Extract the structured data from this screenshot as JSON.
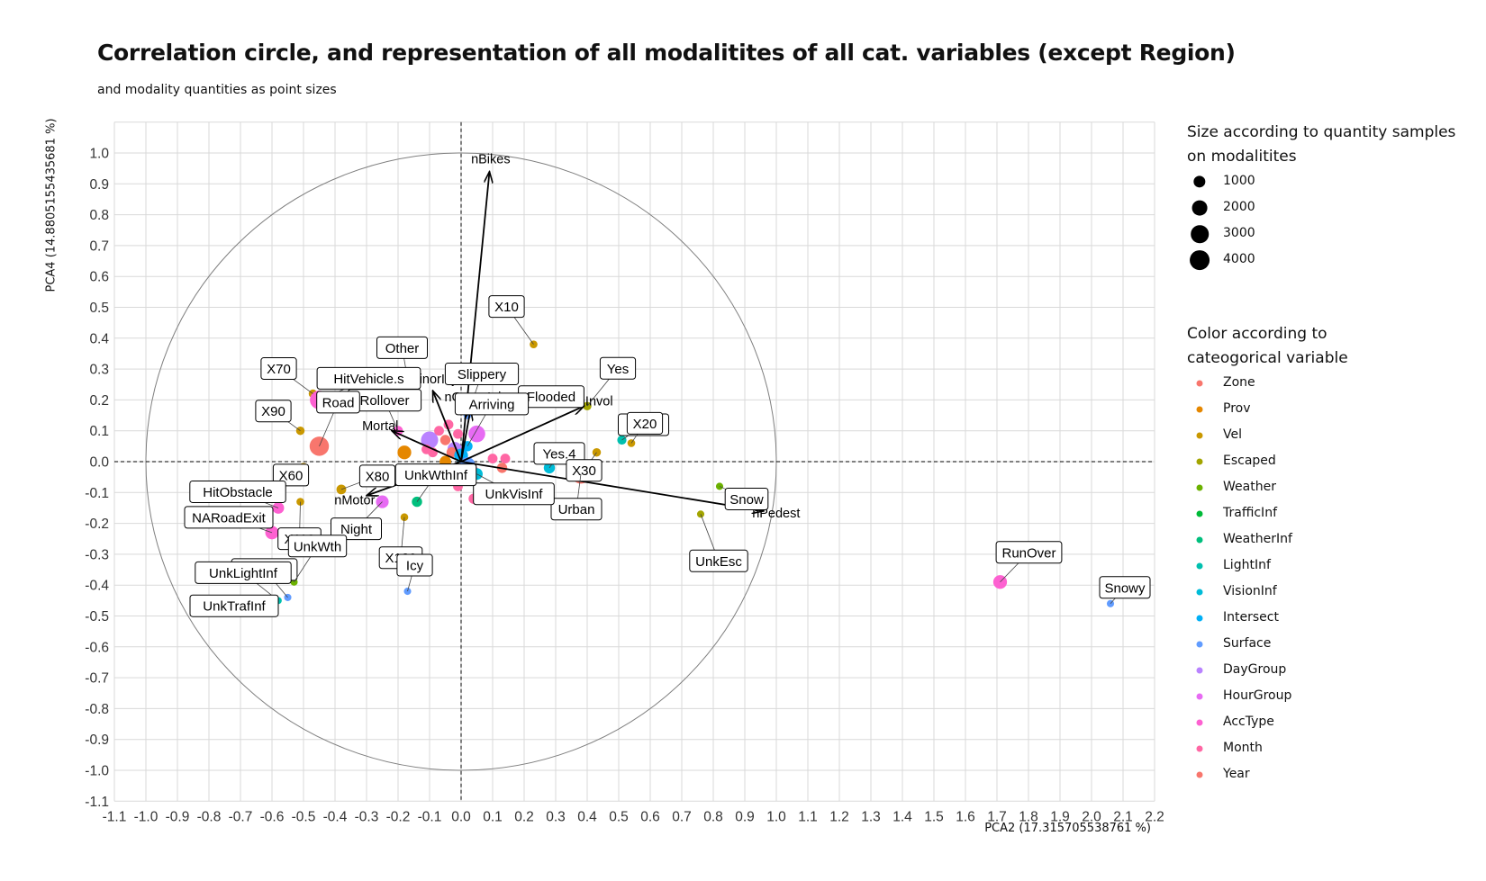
{
  "chart_data": {
    "type": "scatter",
    "title": "Correlation circle, and representation of all modalitites of all cat. variables (except Region)",
    "subtitle": "and modality quantities as point sizes",
    "xlabel": "PCA2 (17.315705538761 %)",
    "ylabel": "PCA4 (14.8805155435681 %)",
    "xlim": [
      -1.1,
      2.2
    ],
    "ylim": [
      -1.1,
      1.0
    ],
    "x_ticks": [
      "-1.1",
      "-1.0",
      "-0.9",
      "-0.8",
      "-0.7",
      "-0.6",
      "-0.5",
      "-0.4",
      "-0.3",
      "-0.2",
      "-0.1",
      "0.0",
      "0.1",
      "0.2",
      "0.3",
      "0.4",
      "0.5",
      "0.6",
      "0.7",
      "0.8",
      "0.9",
      "1.0",
      "1.1",
      "1.2",
      "1.3",
      "1.4",
      "1.5",
      "1.6",
      "1.7",
      "1.8",
      "1.9",
      "2.0",
      "2.1",
      "2.2"
    ],
    "y_ticks": [
      "-1.1",
      "-1.0",
      "-0.9",
      "-0.8",
      "-0.7",
      "-0.6",
      "-0.5",
      "-0.4",
      "-0.3",
      "-0.2",
      "-0.1",
      "0.0",
      "0.1",
      "0.2",
      "0.3",
      "0.4",
      "0.5",
      "0.6",
      "0.7",
      "0.8",
      "0.9",
      "1.0"
    ],
    "grid": true,
    "unit_circle": true,
    "arrows": [
      {
        "label": "nBikes",
        "x": 0.09,
        "y": 0.94
      },
      {
        "label": "nPedest",
        "x": 0.96,
        "y": -0.16
      },
      {
        "label": "nInvol",
        "x": 0.39,
        "y": 0.18
      },
      {
        "label": "nMotor",
        "x": -0.3,
        "y": -0.11
      },
      {
        "label": "nMinorInj",
        "x": -0.09,
        "y": 0.23
      },
      {
        "label": "Mortal",
        "x": -0.22,
        "y": 0.1
      },
      {
        "label": "nGraveInj",
        "x": 0.03,
        "y": 0.17
      }
    ],
    "legend_size": {
      "title": "Size according to quantity samples\non modalitites",
      "values": [
        "1000",
        "2000",
        "3000",
        "4000"
      ]
    },
    "legend_color": {
      "title": "Color according to\n cateogorical variable",
      "categories": [
        {
          "name": "Zone",
          "color": "#F8766D"
        },
        {
          "name": "Prov",
          "color": "#E58700"
        },
        {
          "name": "Vel",
          "color": "#C99800"
        },
        {
          "name": "Escaped",
          "color": "#A3A500"
        },
        {
          "name": "Weather",
          "color": "#6BB100"
        },
        {
          "name": "TrafficInf",
          "color": "#00BA38"
        },
        {
          "name": "WeatherInf",
          "color": "#00BF7D"
        },
        {
          "name": "LightInf",
          "color": "#00C0AF"
        },
        {
          "name": "VisionInf",
          "color": "#00BCD8"
        },
        {
          "name": "Intersect",
          "color": "#00B0F6"
        },
        {
          "name": "Surface",
          "color": "#619CFF"
        },
        {
          "name": "DayGroup",
          "color": "#B983FF"
        },
        {
          "name": "HourGroup",
          "color": "#E76BF3"
        },
        {
          "name": "AccType",
          "color": "#FD61D1"
        },
        {
          "name": "Month",
          "color": "#FF67A4"
        },
        {
          "name": "Year",
          "color": "#F8766D"
        }
      ]
    },
    "labeled_points": [
      {
        "label": "X10",
        "x": 0.23,
        "y": 0.38,
        "group": "Vel",
        "n": 200
      },
      {
        "label": "Other",
        "x": -0.17,
        "y": 0.27,
        "group": "AccType",
        "n": 300
      },
      {
        "label": "X70",
        "x": -0.47,
        "y": 0.22,
        "group": "Vel",
        "n": 300
      },
      {
        "label": "HitVehicle.s",
        "x": -0.45,
        "y": 0.2,
        "group": "AccType",
        "n": 3500
      },
      {
        "label": "Slippery",
        "x": 0.02,
        "y": 0.15,
        "group": "Surface",
        "n": 200
      },
      {
        "label": "Flooded",
        "x": 0.12,
        "y": 0.17,
        "group": "Surface",
        "n": 100
      },
      {
        "label": "Yes",
        "x": 0.4,
        "y": 0.18,
        "group": "Escaped",
        "n": 300
      },
      {
        "label": "X90",
        "x": -0.51,
        "y": 0.1,
        "group": "Vel",
        "n": 300
      },
      {
        "label": "Rollover",
        "x": -0.2,
        "y": 0.1,
        "group": "AccType",
        "n": 500
      },
      {
        "label": "Yes.3",
        "x": 0.51,
        "y": 0.07,
        "group": "LightInf",
        "n": 400
      },
      {
        "label": "Arriving",
        "x": 0.02,
        "y": 0.05,
        "group": "Intersect",
        "n": 600
      },
      {
        "label": "Yes.4",
        "x": 0.28,
        "y": -0.02,
        "group": "VisionInf",
        "n": 800
      },
      {
        "label": "X20",
        "x": 0.54,
        "y": 0.06,
        "group": "Vel",
        "n": 200
      },
      {
        "label": "X30",
        "x": 0.43,
        "y": 0.03,
        "group": "Vel",
        "n": 300
      },
      {
        "label": "X60",
        "x": -0.5,
        "y": -0.02,
        "group": "Vel",
        "n": 500
      },
      {
        "label": "Road",
        "x": -0.45,
        "y": 0.05,
        "group": "Zone",
        "n": 3800
      },
      {
        "label": "Snow",
        "x": 0.82,
        "y": -0.08,
        "group": "Weather",
        "n": 150
      },
      {
        "label": "Urban",
        "x": 0.38,
        "y": -0.04,
        "group": "Zone",
        "n": 3800
      },
      {
        "label": "UnkVisInf",
        "x": 0.05,
        "y": -0.04,
        "group": "VisionInf",
        "n": 900
      },
      {
        "label": "X80",
        "x": -0.38,
        "y": -0.09,
        "group": "Vel",
        "n": 500
      },
      {
        "label": "HitObstacle",
        "x": -0.58,
        "y": -0.15,
        "group": "AccType",
        "n": 900
      },
      {
        "label": "Night",
        "x": -0.25,
        "y": -0.13,
        "group": "HourGroup",
        "n": 1200
      },
      {
        "label": "X120",
        "x": -0.18,
        "y": -0.18,
        "group": "Vel",
        "n": 200
      },
      {
        "label": "X110",
        "x": -0.51,
        "y": -0.13,
        "group": "Vel",
        "n": 200
      },
      {
        "label": "UnkEsc",
        "x": 0.76,
        "y": -0.17,
        "group": "Escaped",
        "n": 150
      },
      {
        "label": "NARoadExit",
        "x": -0.6,
        "y": -0.23,
        "group": "AccType",
        "n": 1400
      },
      {
        "label": "UnkWthInf",
        "x": -0.14,
        "y": -0.13,
        "group": "WeatherInf",
        "n": 600
      },
      {
        "label": "UnkSrfc",
        "x": -0.55,
        "y": -0.44,
        "group": "Surface",
        "n": 150
      },
      {
        "label": "UnkWth",
        "x": -0.53,
        "y": -0.39,
        "group": "Weather",
        "n": 150
      },
      {
        "label": "Icy",
        "x": -0.17,
        "y": -0.42,
        "group": "Surface",
        "n": 150
      },
      {
        "label": "UnkLightInf",
        "x": -0.58,
        "y": -0.45,
        "group": "LightInf",
        "n": 120
      },
      {
        "label": "UnkTrafInf",
        "x": -0.62,
        "y": -0.47,
        "group": "TrafficInf",
        "n": 120
      },
      {
        "label": "RunOver",
        "x": 1.71,
        "y": -0.39,
        "group": "AccType",
        "n": 1500
      },
      {
        "label": "Snowy",
        "x": 2.06,
        "y": -0.46,
        "group": "Surface",
        "n": 150
      }
    ],
    "unlabeled_points": [
      {
        "x": -0.1,
        "y": 0.07,
        "group": "DayGroup",
        "n": 2800
      },
      {
        "x": -0.02,
        "y": 0.04,
        "group": "DayGroup",
        "n": 1800
      },
      {
        "x": 0.05,
        "y": 0.09,
        "group": "HourGroup",
        "n": 2600
      },
      {
        "x": -0.04,
        "y": 0.12,
        "group": "Month",
        "n": 500
      },
      {
        "x": -0.07,
        "y": 0.1,
        "group": "Month",
        "n": 500
      },
      {
        "x": -0.01,
        "y": 0.09,
        "group": "Month",
        "n": 500
      },
      {
        "x": -0.05,
        "y": 0.07,
        "group": "Year",
        "n": 600
      },
      {
        "x": -0.11,
        "y": 0.04,
        "group": "Month",
        "n": 500
      },
      {
        "x": -0.09,
        "y": 0.03,
        "group": "Month",
        "n": 500
      },
      {
        "x": -0.03,
        "y": 0.03,
        "group": "Year",
        "n": 600
      },
      {
        "x": -0.06,
        "y": -0.04,
        "group": "Year",
        "n": 600
      },
      {
        "x": -0.04,
        "y": -0.03,
        "group": "Month",
        "n": 500
      },
      {
        "x": 0.01,
        "y": -0.02,
        "group": "Month",
        "n": 500
      },
      {
        "x": 0.04,
        "y": -0.03,
        "group": "Month",
        "n": 500
      },
      {
        "x": -0.01,
        "y": -0.08,
        "group": "Month",
        "n": 500
      },
      {
        "x": 0.1,
        "y": 0.01,
        "group": "Month",
        "n": 500
      },
      {
        "x": 0.14,
        "y": 0.01,
        "group": "Month",
        "n": 500
      },
      {
        "x": 0.13,
        "y": -0.02,
        "group": "Year",
        "n": 600
      },
      {
        "x": -0.01,
        "y": -0.06,
        "group": "Surface",
        "n": 300
      },
      {
        "x": 0.0,
        "y": 0.02,
        "group": "Intersect",
        "n": 1500
      },
      {
        "x": 0.02,
        "y": -0.01,
        "group": "Surface",
        "n": 2000
      },
      {
        "x": -0.05,
        "y": 0.0,
        "group": "Prov",
        "n": 900
      },
      {
        "x": -0.07,
        "y": -0.03,
        "group": "Prov",
        "n": 900
      },
      {
        "x": -0.03,
        "y": -0.05,
        "group": "Prov",
        "n": 900
      },
      {
        "x": -0.18,
        "y": 0.03,
        "group": "Prov",
        "n": 1500
      },
      {
        "x": 0.04,
        "y": -0.12,
        "group": "Month",
        "n": 600
      },
      {
        "x": -0.14,
        "y": -0.13,
        "group": "Weather",
        "n": 300
      },
      {
        "x": -0.4,
        "y": 0.19,
        "group": "AccType",
        "n": 900
      }
    ]
  }
}
